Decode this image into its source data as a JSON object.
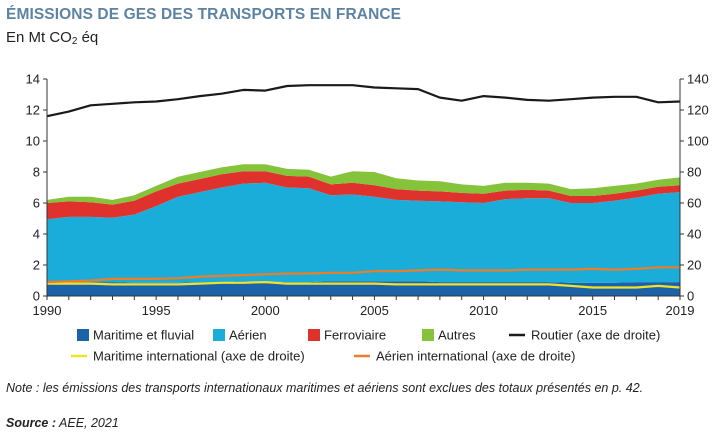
{
  "header": {
    "title": "ÉMISSIONS DE GES DES TRANSPORTS EN FRANCE",
    "unit_prefix": "En Mt CO",
    "unit_sub": "2",
    "unit_suffix": " éq"
  },
  "footer": {
    "note": "Note : les émissions des transports internationaux maritimes et aériens sont exclues des totaux présentés en p. 42.",
    "source_label": "Source :",
    "source_value": " AEE, 2021"
  },
  "chart_data": {
    "type": "area",
    "x": [
      1990,
      1991,
      1992,
      1993,
      1994,
      1995,
      1996,
      1997,
      1998,
      1999,
      2000,
      2001,
      2002,
      2003,
      2004,
      2005,
      2006,
      2007,
      2008,
      2009,
      2010,
      2011,
      2012,
      2013,
      2014,
      2015,
      2016,
      2017,
      2018,
      2019
    ],
    "x_ticks": [
      1990,
      1995,
      2000,
      2005,
      2010,
      2015,
      2019
    ],
    "ylim_left": [
      0,
      14
    ],
    "yticks_left": [
      0,
      2,
      4,
      6,
      8,
      10,
      12,
      14
    ],
    "ylim_right": [
      0,
      140
    ],
    "yticks_right": [
      0,
      20,
      40,
      60,
      80,
      100,
      120,
      140
    ],
    "grid": false,
    "legend_position": "bottom",
    "stacked_series": [
      {
        "name": "Maritime et fluvial",
        "color": "#1a63a8",
        "values": [
          0.9,
          0.9,
          0.9,
          0.9,
          0.85,
          0.85,
          0.85,
          0.9,
          0.9,
          0.95,
          0.95,
          0.9,
          0.9,
          0.95,
          0.95,
          0.95,
          0.95,
          0.95,
          0.9,
          0.9,
          0.9,
          0.9,
          0.9,
          0.9,
          0.85,
          0.85,
          0.85,
          0.9,
          0.9,
          0.9
        ]
      },
      {
        "name": "Aérien",
        "color": "#1aadd9",
        "values": [
          4.05,
          4.2,
          4.2,
          4.15,
          4.4,
          4.95,
          5.55,
          5.8,
          6.1,
          6.3,
          6.35,
          6.1,
          6.05,
          5.55,
          5.6,
          5.45,
          5.25,
          5.2,
          5.2,
          5.15,
          5.1,
          5.35,
          5.4,
          5.4,
          5.15,
          5.15,
          5.3,
          5.45,
          5.7,
          5.8
        ]
      },
      {
        "name": "Ferroviaire",
        "color": "#e0322d",
        "values": [
          1.05,
          1.0,
          0.95,
          0.85,
          0.9,
          0.95,
          0.85,
          0.85,
          0.85,
          0.8,
          0.75,
          0.75,
          0.75,
          0.7,
          0.75,
          0.75,
          0.7,
          0.65,
          0.65,
          0.6,
          0.6,
          0.55,
          0.55,
          0.5,
          0.45,
          0.45,
          0.45,
          0.45,
          0.45,
          0.45
        ]
      },
      {
        "name": "Autres",
        "color": "#85c33b",
        "values": [
          0.2,
          0.3,
          0.35,
          0.3,
          0.35,
          0.35,
          0.45,
          0.45,
          0.45,
          0.45,
          0.45,
          0.45,
          0.45,
          0.5,
          0.75,
          0.85,
          0.7,
          0.65,
          0.65,
          0.55,
          0.5,
          0.5,
          0.45,
          0.45,
          0.45,
          0.5,
          0.5,
          0.45,
          0.45,
          0.5
        ]
      }
    ],
    "line_series": [
      {
        "name": "Routier (axe de droite)",
        "color": "#1a1a1a",
        "axis": "right",
        "values": [
          116,
          119,
          123,
          124,
          125,
          125.5,
          127,
          129,
          130.5,
          133,
          132.5,
          135.5,
          136,
          136,
          136,
          134.5,
          134,
          133.5,
          128,
          126,
          129,
          128,
          126.5,
          126,
          127,
          128,
          128.5,
          128.5,
          125,
          125.5
        ]
      },
      {
        "name": "Maritime international (axe de droite)",
        "color": "#f2e12a",
        "axis": "right",
        "values": [
          8,
          8,
          8,
          7.5,
          7.5,
          7.5,
          7.5,
          8,
          8.5,
          8.5,
          9,
          8,
          8,
          8,
          8,
          8,
          7.5,
          7.5,
          7.5,
          7.5,
          7.5,
          7.5,
          7.5,
          7.5,
          6.5,
          5.5,
          5.5,
          5.5,
          6.5,
          5.5
        ]
      },
      {
        "name": "Aérien international (axe de droite)",
        "color": "#ee7d26",
        "axis": "right",
        "values": [
          9,
          9.5,
          10,
          11,
          11,
          11,
          11.5,
          12.5,
          13,
          13.5,
          14,
          14.5,
          14.5,
          15,
          15,
          16,
          16,
          16.5,
          17,
          16.5,
          16.5,
          16.5,
          17,
          17,
          17,
          17.5,
          17,
          17.5,
          18.5,
          18.5
        ]
      }
    ],
    "legend": [
      {
        "name": "Maritime et fluvial",
        "kind": "box",
        "color": "#1a63a8"
      },
      {
        "name": "Aérien",
        "kind": "box",
        "color": "#1aadd9"
      },
      {
        "name": "Ferroviaire",
        "kind": "box",
        "color": "#e0322d"
      },
      {
        "name": "Autres",
        "kind": "box",
        "color": "#85c33b"
      },
      {
        "name": "Routier (axe de droite)",
        "kind": "line",
        "color": "#1a1a1a"
      },
      {
        "name": "Maritime international (axe de droite)",
        "kind": "line",
        "color": "#f2e12a"
      },
      {
        "name": "Aérien international (axe de droite)",
        "kind": "line",
        "color": "#ee7d26"
      }
    ]
  }
}
